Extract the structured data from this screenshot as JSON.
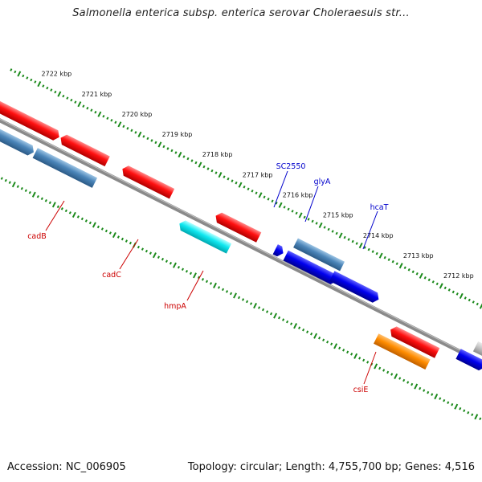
{
  "title": "Salmonella enterica subsp. enterica serovar Choleraesuis str...",
  "footer": {
    "accession": "Accession: NC_006905",
    "summary": "Topology: circular; Length: 4,755,700 bp; Genes: 4,516"
  },
  "colors": {
    "backbone": "#8a8a8a",
    "ticks": "#1c8a1c",
    "label_forward": "#0000cc",
    "label_reverse": "#cc0000"
  },
  "scale_labels": [
    "2722 kbp",
    "2721 kbp",
    "2720 kbp",
    "2719 kbp",
    "2718 kbp",
    "2717 kbp",
    "2716 kbp",
    "2715 kbp",
    "2714 kbp",
    "2713 kbp",
    "2712 kbp"
  ],
  "gene_labels": {
    "forward": [
      "SC2550",
      "glyA",
      "hcaT"
    ],
    "reverse": [
      "cadB",
      "cadC",
      "hmpA",
      "csiE"
    ]
  },
  "feature_colors": [
    "red",
    "steelblue",
    "blue",
    "cyan",
    "orange",
    "gray"
  ]
}
